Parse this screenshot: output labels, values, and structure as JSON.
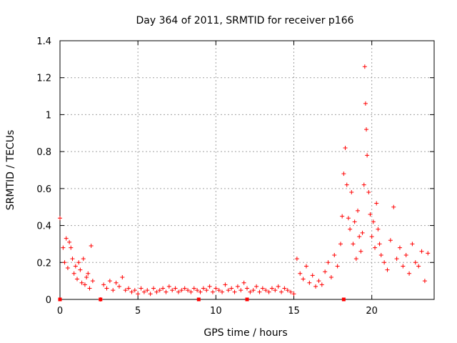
{
  "chart_data": {
    "type": "scatter",
    "title": "Day 364 of 2011, SRMTID for receiver p166",
    "xlabel": "GPS time / hours",
    "ylabel": "SRMTID / TECUs",
    "xlim": [
      0,
      24
    ],
    "ylim": [
      0,
      1.4
    ],
    "xticks": [
      "0",
      "5",
      "10",
      "15",
      "20"
    ],
    "xtick_values": [
      0,
      5,
      10,
      15,
      20
    ],
    "yticks": [
      "0",
      "0.2",
      "0.4",
      "0.6",
      "0.8",
      "1",
      "1.2",
      "1.4"
    ],
    "ytick_values": [
      0,
      0.2,
      0.4,
      0.6,
      0.8,
      1.0,
      1.2,
      1.4
    ],
    "grid": true,
    "marker": "+",
    "series": [
      {
        "name": "SRMTID",
        "color": "#ff0000",
        "x": [
          0.0,
          0.2,
          0.3,
          0.4,
          0.5,
          0.6,
          0.7,
          0.8,
          0.9,
          1.0,
          1.1,
          1.2,
          1.3,
          1.4,
          1.5,
          1.6,
          1.7,
          1.8,
          1.9,
          2.0,
          2.1,
          2.6,
          2.8,
          3.0,
          3.2,
          3.4,
          3.6,
          3.8,
          4.0,
          4.2,
          4.4,
          4.6,
          4.8,
          5.0,
          5.2,
          5.4,
          5.6,
          5.8,
          6.0,
          6.2,
          6.4,
          6.6,
          6.8,
          7.0,
          7.2,
          7.4,
          7.6,
          7.8,
          8.0,
          8.2,
          8.4,
          8.6,
          8.8,
          9.0,
          9.2,
          9.4,
          9.6,
          9.8,
          10.0,
          10.2,
          10.4,
          10.6,
          10.8,
          11.0,
          11.2,
          11.4,
          11.6,
          11.8,
          12.0,
          12.2,
          12.4,
          12.6,
          12.8,
          13.0,
          13.2,
          13.4,
          13.6,
          13.8,
          14.0,
          14.2,
          14.4,
          14.6,
          14.8,
          15.0,
          15.2,
          15.4,
          15.6,
          15.8,
          16.0,
          16.2,
          16.4,
          16.6,
          16.8,
          17.0,
          17.2,
          17.4,
          17.6,
          17.8,
          18.0,
          18.1,
          18.2,
          18.3,
          18.4,
          18.5,
          18.6,
          18.7,
          18.8,
          18.9,
          19.0,
          19.1,
          19.2,
          19.3,
          19.4,
          19.5,
          19.55,
          19.6,
          19.65,
          19.7,
          19.8,
          19.9,
          20.0,
          20.1,
          20.2,
          20.3,
          20.4,
          20.5,
          20.6,
          20.8,
          21.0,
          21.2,
          21.4,
          21.6,
          21.8,
          22.0,
          22.2,
          22.4,
          22.6,
          22.8,
          23.0,
          23.2,
          23.4,
          23.6
        ],
        "y": [
          0.44,
          0.28,
          0.2,
          0.33,
          0.17,
          0.31,
          0.28,
          0.22,
          0.14,
          0.18,
          0.11,
          0.2,
          0.16,
          0.09,
          0.22,
          0.08,
          0.12,
          0.14,
          0.06,
          0.29,
          0.1,
          0.0,
          0.08,
          0.06,
          0.1,
          0.05,
          0.09,
          0.07,
          0.12,
          0.05,
          0.06,
          0.04,
          0.05,
          0.03,
          0.06,
          0.04,
          0.05,
          0.03,
          0.06,
          0.04,
          0.05,
          0.06,
          0.04,
          0.07,
          0.05,
          0.06,
          0.04,
          0.05,
          0.06,
          0.05,
          0.04,
          0.06,
          0.05,
          0.04,
          0.06,
          0.05,
          0.07,
          0.04,
          0.06,
          0.05,
          0.04,
          0.08,
          0.05,
          0.06,
          0.04,
          0.07,
          0.05,
          0.09,
          0.06,
          0.04,
          0.05,
          0.07,
          0.04,
          0.06,
          0.05,
          0.04,
          0.06,
          0.05,
          0.07,
          0.04,
          0.06,
          0.05,
          0.04,
          0.03,
          0.22,
          0.14,
          0.11,
          0.18,
          0.09,
          0.13,
          0.07,
          0.1,
          0.08,
          0.15,
          0.2,
          0.12,
          0.24,
          0.18,
          0.3,
          0.45,
          0.68,
          0.82,
          0.62,
          0.44,
          0.38,
          0.58,
          0.3,
          0.42,
          0.22,
          0.48,
          0.34,
          0.26,
          0.36,
          0.62,
          1.26,
          1.06,
          0.92,
          0.78,
          0.58,
          0.46,
          0.34,
          0.42,
          0.28,
          0.52,
          0.38,
          0.3,
          0.24,
          0.2,
          0.16,
          0.32,
          0.5,
          0.22,
          0.28,
          0.18,
          0.24,
          0.14,
          0.3,
          0.2,
          0.18,
          0.26,
          0.1,
          0.25
        ]
      }
    ],
    "baseline_markers": {
      "x": [
        0.0,
        2.6,
        8.9,
        12.0,
        18.2
      ],
      "y": [
        0.0,
        0.0,
        0.0,
        0.0,
        0.0
      ]
    }
  }
}
